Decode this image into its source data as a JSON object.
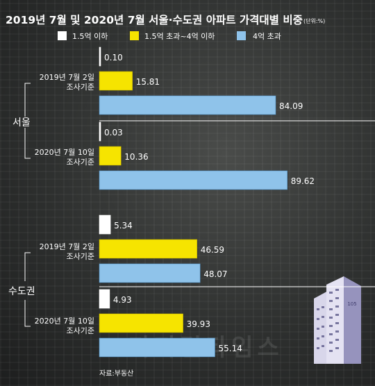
{
  "chart_data": {
    "type": "bar",
    "orientation": "horizontal",
    "title": "2019년 7월 및 2020년 7월 서울·수도권 아파트 가격대별 비중",
    "unit": "(단위:%)",
    "legend_position": "top",
    "series": [
      {
        "name": "1.5억 이하",
        "color": "#ffffff"
      },
      {
        "name": "1.5억 초과~4억 이하",
        "color": "#f6e400"
      },
      {
        "name": "4억 초과",
        "color": "#8fc3ea"
      }
    ],
    "groups": [
      {
        "region": "서울",
        "periods": [
          {
            "label_line1": "2019년 7월 2일",
            "label_line2": "조사기준",
            "values": [
              0.1,
              15.81,
              84.09
            ],
            "value_labels": [
              "0.10",
              "15.81",
              "84.09"
            ]
          },
          {
            "label_line1": "2020년 7월 10일",
            "label_line2": "조사기준",
            "values": [
              0.03,
              10.36,
              89.62
            ],
            "value_labels": [
              "0.03",
              "10.36",
              "89.62"
            ]
          }
        ]
      },
      {
        "region": "수도권",
        "periods": [
          {
            "label_line1": "2019년 7월 2일",
            "label_line2": "조사기준",
            "values": [
              5.34,
              46.59,
              48.07
            ],
            "value_labels": [
              "5.34",
              "46.59",
              "48.07"
            ]
          },
          {
            "label_line1": "2020년 7월 10일",
            "label_line2": "조사기준",
            "values": [
              4.93,
              39.93,
              55.14
            ],
            "value_labels": [
              "4.93",
              "39.93",
              "55.14"
            ]
          }
        ]
      }
    ],
    "xlim": [
      0,
      100
    ],
    "source": "자료:부동산"
  },
  "decor": {
    "building_number": "105",
    "watermark": "디지털타임스"
  }
}
